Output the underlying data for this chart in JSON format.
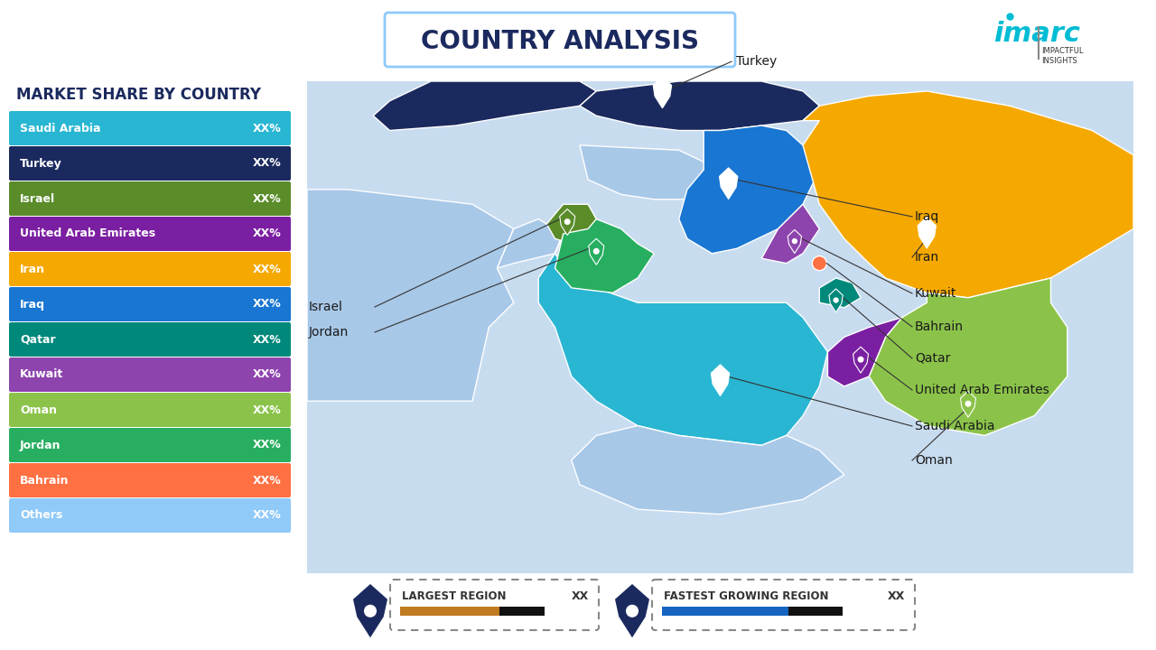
{
  "title": "COUNTRY ANALYSIS",
  "bg_color": "#FFFFFF",
  "legend_title": "MARKET SHARE BY COUNTRY",
  "legend_items": [
    {
      "label": "Saudi Arabia",
      "value": "XX%",
      "color": "#29B6D2"
    },
    {
      "label": "Turkey",
      "value": "XX%",
      "color": "#1B2A5E"
    },
    {
      "label": "Israel",
      "value": "XX%",
      "color": "#5A8C2A"
    },
    {
      "label": "United Arab Emirates",
      "value": "XX%",
      "color": "#7B1FA2"
    },
    {
      "label": "Iran",
      "value": "XX%",
      "color": "#F5A800"
    },
    {
      "label": "Iraq",
      "value": "XX%",
      "color": "#1976D2"
    },
    {
      "label": "Qatar",
      "value": "XX%",
      "color": "#00897B"
    },
    {
      "label": "Kuwait",
      "value": "XX%",
      "color": "#8E44AD"
    },
    {
      "label": "Oman",
      "value": "XX%",
      "color": "#8BC34A"
    },
    {
      "label": "Jordan",
      "value": "XX%",
      "color": "#27AE60"
    },
    {
      "label": "Bahrain",
      "value": "XX%",
      "color": "#FF7043"
    },
    {
      "label": "Others",
      "value": "XX%",
      "color": "#90CAF9"
    }
  ],
  "map_bg": "#FFFFFF",
  "water_color": "#C8DCF0",
  "land_bg_color": "#A8C8E8",
  "countries": {
    "Turkey": {
      "color": "#1B2A5E"
    },
    "Iran": {
      "color": "#F5A800"
    },
    "Iraq": {
      "color": "#1976D2"
    },
    "Saudi Arabia": {
      "color": "#29B6D2"
    },
    "Oman": {
      "color": "#8BC34A"
    },
    "UAE": {
      "color": "#7B1FA2"
    },
    "Kuwait": {
      "color": "#8E44AD"
    },
    "Qatar": {
      "color": "#00897B"
    },
    "Bahrain": {
      "color": "#FF7043"
    },
    "Israel": {
      "color": "#5A8C2A"
    },
    "Jordan": {
      "color": "#27AE60"
    },
    "Syria": {
      "color": "#A8C8E8"
    },
    "Egypt": {
      "color": "#C8DCF0"
    },
    "Yemen": {
      "color": "#A8C8E8"
    }
  },
  "bottom_pin_color": "#1B2A5E",
  "largest_bar_color": "#C07A20",
  "fastest_bar_color": "#1565C0"
}
